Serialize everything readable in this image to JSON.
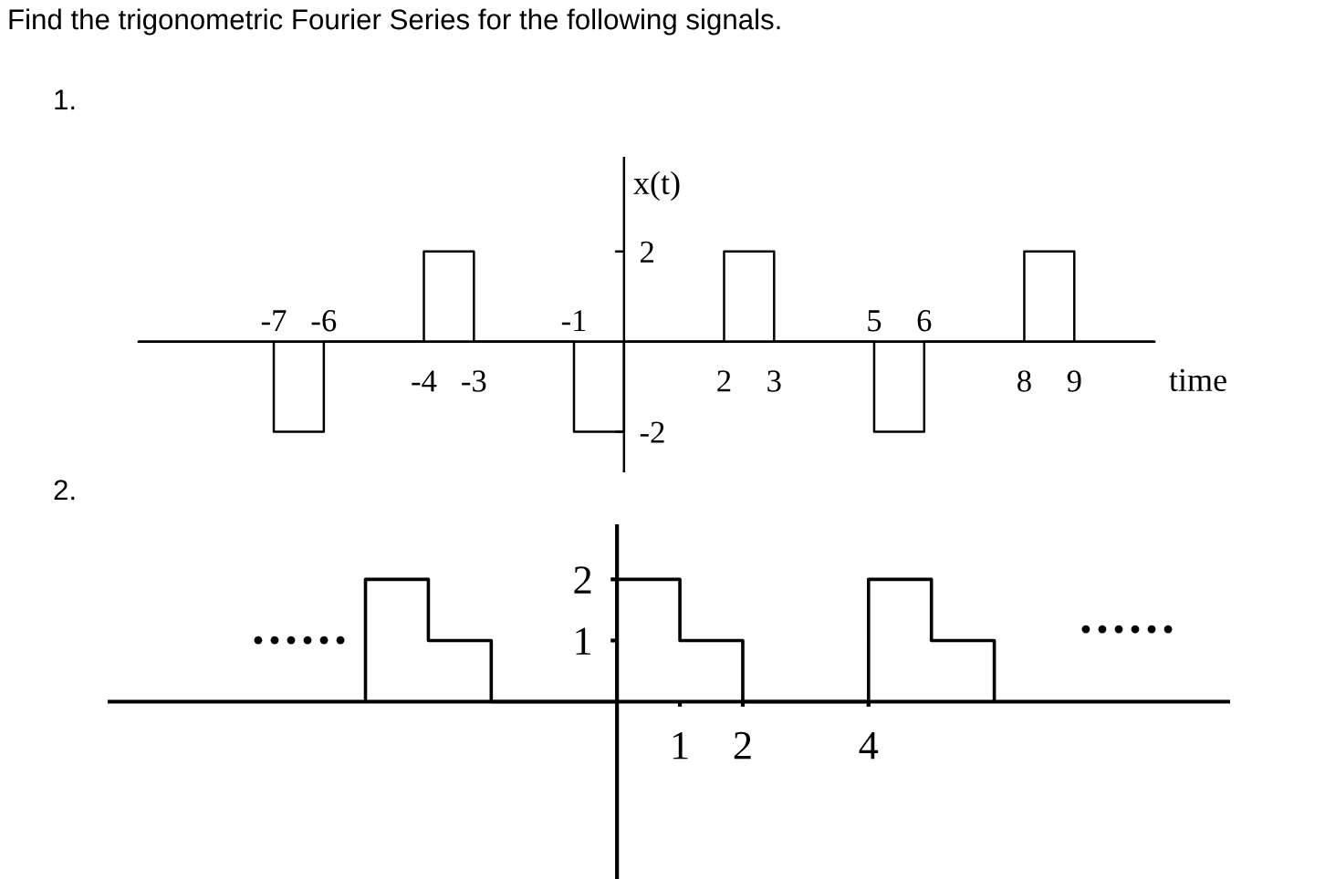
{
  "chart_data": [
    {
      "type": "line",
      "title": "Find the trigonometric Fourier Series for the following signals.",
      "subtitle": "1.",
      "xlabel": "time",
      "ylabel": "x(t)",
      "series": [
        {
          "color": "#000000",
          "x": [
            -7,
            -7,
            -6,
            -6,
            -4,
            -4,
            -3,
            -3,
            -1,
            -1,
            0,
            0,
            2,
            2,
            3,
            3,
            5,
            5,
            6,
            6,
            8,
            8,
            9,
            9
          ],
          "values": [
            0,
            -2,
            -2,
            0,
            0,
            2,
            2,
            0,
            0,
            -2,
            -2,
            0,
            0,
            2,
            2,
            0,
            0,
            -2,
            -2,
            0,
            0,
            2,
            2,
            0
          ]
        }
      ],
      "xlim": [
        -9.7,
        10.6
      ],
      "xticks": [
        -4,
        -3,
        2,
        3,
        8,
        9
      ],
      "x2lim": [
        -9.7,
        10.6
      ],
      "x2ticks": [
        -7,
        -6,
        -1,
        5,
        6
      ],
      "ylim": [
        -2.9,
        4.1
      ],
      "yticks": [
        -2,
        2
      ],
      "line_style": "solid"
    },
    {
      "type": "line",
      "title": "2.",
      "series": [
        {
          "color": "#000000",
          "x": [
            -4,
            -4,
            -3,
            -3,
            -2,
            -2,
            0,
            0,
            1,
            1,
            2,
            2,
            4,
            4,
            5,
            5,
            6,
            6
          ],
          "values": [
            0,
            2,
            2,
            1,
            1,
            0,
            0,
            2,
            2,
            1,
            1,
            0,
            0,
            2,
            2,
            1,
            1,
            0
          ]
        }
      ],
      "xlim": [
        -8.1,
        9.75
      ],
      "xticks": [
        1,
        2,
        4
      ],
      "ylim": [
        -2.9,
        2.9
      ],
      "yticks": [
        1,
        2
      ],
      "line_style": "solid",
      "annotations": [
        "••••••",
        "••••••"
      ]
    }
  ]
}
